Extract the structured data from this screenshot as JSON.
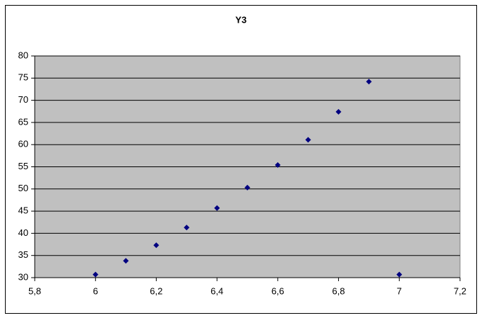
{
  "chart_data": {
    "type": "scatter",
    "title": "Y3",
    "x": [
      6,
      6.1,
      6.2,
      6.3,
      6.4,
      6.5,
      6.6,
      6.7,
      6.8,
      6.9,
      7
    ],
    "values": [
      30.7,
      33.8,
      37.3,
      41.3,
      45.7,
      50.3,
      55.4,
      61.1,
      67.4,
      74.2,
      30.7
    ],
    "color": "#000080",
    "xlim": [
      5.8,
      7.2
    ],
    "xticks": [
      {
        "value": 5.8,
        "label": "5,8"
      },
      6,
      {
        "value": 6.2,
        "label": "6,2"
      },
      {
        "value": 6.4,
        "label": "6,4"
      },
      {
        "value": 6.6,
        "label": "6,6"
      },
      {
        "value": 6.8,
        "label": "6,8"
      },
      7,
      {
        "value": 7.2,
        "label": "7,2"
      }
    ],
    "ylim": [
      30,
      80
    ],
    "yticks": [
      30,
      35,
      40,
      45,
      50,
      55,
      60,
      65,
      70,
      75,
      80
    ],
    "grid": true
  }
}
